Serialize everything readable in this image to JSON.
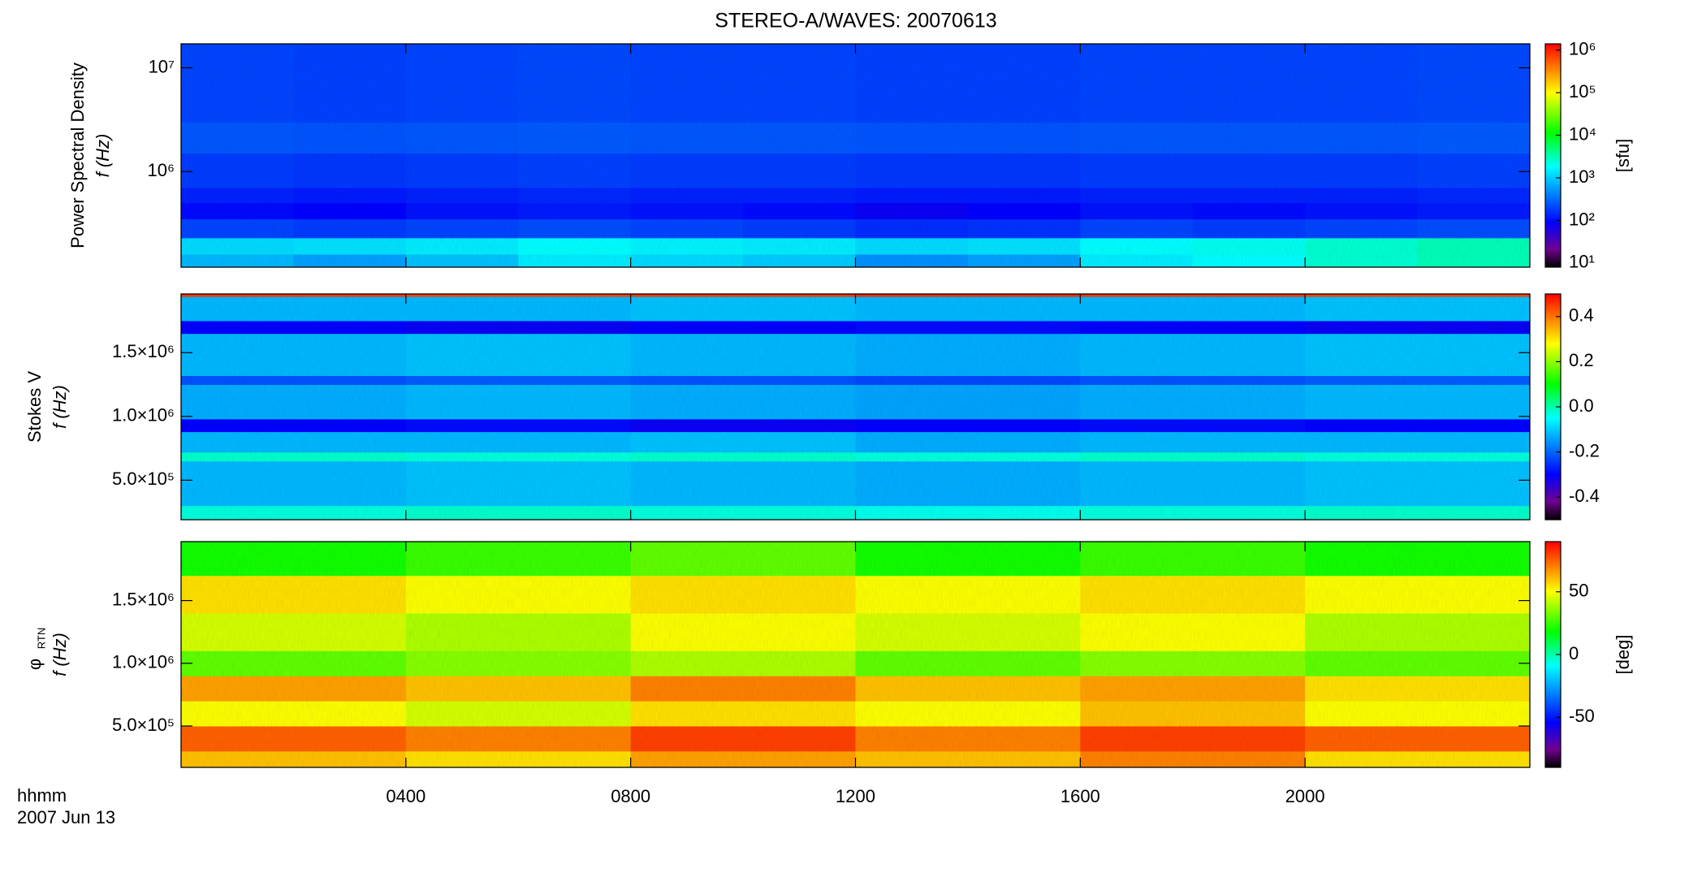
{
  "title": "STEREO-A/WAVES: 20070613",
  "x_axis_label": "hhmm",
  "x_axis_date": "2007 Jun 13",
  "chart_data": [
    {
      "type": "heatmap",
      "ylabel": "Power Spectral Density",
      "ylabel2": "f (Hz)",
      "ylog": true,
      "ylim": [
        120000,
        17000000
      ],
      "yticks": [
        {
          "value": 1000000,
          "label": "10⁶"
        },
        {
          "value": 10000000,
          "label": "10⁷"
        }
      ],
      "xlim": [
        0,
        24
      ],
      "xticks": [
        4,
        8,
        12,
        16,
        20
      ],
      "x": [
        0,
        2,
        4,
        6,
        8,
        10,
        12,
        14,
        16,
        18,
        20,
        22,
        24
      ],
      "y": [
        120000,
        160000,
        230000,
        350000,
        500000,
        700000,
        1500000,
        3000000,
        17000000
      ],
      "z": [
        [
          800,
          600,
          900,
          1500,
          1200,
          1000,
          500,
          600,
          1500,
          1800,
          2500,
          3000
        ],
        [
          1200,
          1300,
          1500,
          1800,
          1600,
          1500,
          1200,
          1300,
          1800,
          2000,
          2500,
          3000
        ],
        [
          200,
          180,
          200,
          220,
          200,
          180,
          150,
          160,
          200,
          180,
          200,
          220
        ],
        [
          100,
          90,
          110,
          120,
          110,
          100,
          80,
          90,
          110,
          100,
          110,
          120
        ],
        [
          130,
          120,
          130,
          140,
          130,
          130,
          120,
          120,
          130,
          130,
          130,
          140
        ],
        [
          180,
          170,
          180,
          190,
          180,
          180,
          170,
          170,
          180,
          180,
          180,
          190
        ],
        [
          250,
          240,
          250,
          260,
          250,
          250,
          240,
          240,
          250,
          250,
          250,
          260
        ],
        [
          200,
          190,
          200,
          210,
          200,
          200,
          190,
          190,
          200,
          200,
          200,
          210
        ]
      ],
      "clog": true,
      "clim": [
        8,
        1400000
      ],
      "cticks": [
        {
          "value": 10,
          "label": "10¹"
        },
        {
          "value": 100,
          "label": "10²"
        },
        {
          "value": 1000,
          "label": "10³"
        },
        {
          "value": 10000,
          "label": "10⁴"
        },
        {
          "value": 100000,
          "label": "10⁵"
        },
        {
          "value": 1000000,
          "label": "10⁶"
        }
      ],
      "clabel": "[sfu]",
      "colormap": [
        {
          "at": 0,
          "color": "#000000"
        },
        {
          "at": 0.08,
          "color": "#700090"
        },
        {
          "at": 0.2,
          "color": "#0000ff"
        },
        {
          "at": 0.45,
          "color": "#00ffff"
        },
        {
          "at": 0.6,
          "color": "#00ff00"
        },
        {
          "at": 0.78,
          "color": "#ffff00"
        },
        {
          "at": 1,
          "color": "#ff0000"
        }
      ]
    },
    {
      "type": "heatmap",
      "ylabel": "Stokes V",
      "ylabel2": "f (Hz)",
      "ylog": false,
      "ylim": [
        190000,
        1960000
      ],
      "yticks": [
        {
          "value": 500000,
          "label": "5.0×10⁵"
        },
        {
          "value": 1000000,
          "label": "1.0×10⁶"
        },
        {
          "value": 1500000,
          "label": "1.5×10⁶"
        }
      ],
      "xlim": [
        0,
        24
      ],
      "xticks": [
        4,
        8,
        12,
        16,
        20
      ],
      "x": [
        0,
        4,
        8,
        12,
        16,
        20,
        24
      ],
      "y": [
        190000,
        300000,
        650000,
        720000,
        880000,
        980000,
        1250000,
        1320000,
        1650000,
        1750000,
        1940000,
        1960000
      ],
      "z": [
        [
          -0.03,
          -0.02,
          -0.03,
          -0.04,
          -0.03,
          -0.02
        ],
        [
          -0.12,
          -0.11,
          -0.12,
          -0.13,
          -0.12,
          -0.11
        ],
        [
          -0.02,
          -0.03,
          -0.02,
          -0.03,
          -0.02,
          -0.03
        ],
        [
          -0.12,
          -0.12,
          -0.11,
          -0.13,
          -0.12,
          -0.12
        ],
        [
          -0.3,
          -0.29,
          -0.31,
          -0.3,
          -0.29,
          -0.3
        ],
        [
          -0.13,
          -0.12,
          -0.13,
          -0.14,
          -0.13,
          -0.12
        ],
        [
          -0.22,
          -0.21,
          -0.22,
          -0.23,
          -0.22,
          -0.21
        ],
        [
          -0.12,
          -0.11,
          -0.12,
          -0.13,
          -0.12,
          -0.11
        ],
        [
          -0.3,
          -0.31,
          -0.3,
          -0.29,
          -0.3,
          -0.31
        ],
        [
          -0.12,
          -0.12,
          -0.11,
          -0.12,
          -0.12,
          -0.11
        ],
        [
          0.45,
          0.44,
          0.45,
          0.46,
          0.45,
          0.44
        ]
      ],
      "clog": false,
      "clim": [
        -0.5,
        0.5
      ],
      "cticks": [
        -0.4,
        -0.2,
        {
          "value": 0,
          "label": "0.0"
        },
        0.2,
        0.4
      ],
      "colormap": [
        {
          "at": 0,
          "color": "#000000"
        },
        {
          "at": 0.08,
          "color": "#700090"
        },
        {
          "at": 0.2,
          "color": "#0000ff"
        },
        {
          "at": 0.45,
          "color": "#00ffff"
        },
        {
          "at": 0.6,
          "color": "#00ff00"
        },
        {
          "at": 0.78,
          "color": "#ffff00"
        },
        {
          "at": 1,
          "color": "#ff0000"
        }
      ]
    },
    {
      "type": "heatmap",
      "ylabel": "φ",
      "ylabel_sub": "RTN",
      "ylabel2": "f (Hz)",
      "ylog": false,
      "ylim": [
        170000,
        1970000
      ],
      "yticks": [
        {
          "value": 500000,
          "label": "5.0×10⁵"
        },
        {
          "value": 1000000,
          "label": "1.0×10⁶"
        },
        {
          "value": 1500000,
          "label": "1.5×10⁶"
        }
      ],
      "xlim": [
        0,
        24
      ],
      "xticks": [
        {
          "value": 4,
          "label": "0400"
        },
        {
          "value": 8,
          "label": "0800"
        },
        {
          "value": 12,
          "label": "1200"
        },
        {
          "value": 16,
          "label": "1600"
        },
        {
          "value": 20,
          "label": "2000"
        }
      ],
      "x": [
        0,
        4,
        8,
        12,
        16,
        20,
        24
      ],
      "y": [
        170000,
        300000,
        500000,
        700000,
        900000,
        1100000,
        1400000,
        1700000,
        1970000
      ],
      "z": [
        [
          60,
          55,
          65,
          60,
          70,
          55
        ],
        [
          75,
          70,
          80,
          70,
          80,
          75
        ],
        [
          50,
          45,
          55,
          50,
          60,
          50
        ],
        [
          65,
          60,
          70,
          60,
          65,
          55
        ],
        [
          30,
          35,
          40,
          30,
          35,
          30
        ],
        [
          45,
          40,
          50,
          45,
          50,
          40
        ],
        [
          55,
          50,
          55,
          50,
          55,
          50
        ],
        [
          20,
          25,
          30,
          20,
          25,
          20
        ]
      ],
      "clog": false,
      "clim": [
        -90,
        90
      ],
      "cticks": [
        -50,
        0,
        50
      ],
      "clabel": "[deg]",
      "colormap": [
        {
          "at": 0,
          "color": "#000000"
        },
        {
          "at": 0.08,
          "color": "#700090"
        },
        {
          "at": 0.2,
          "color": "#0000ff"
        },
        {
          "at": 0.45,
          "color": "#00ffff"
        },
        {
          "at": 0.6,
          "color": "#00ff00"
        },
        {
          "at": 0.78,
          "color": "#ffff00"
        },
        {
          "at": 1,
          "color": "#ff0000"
        }
      ]
    }
  ]
}
